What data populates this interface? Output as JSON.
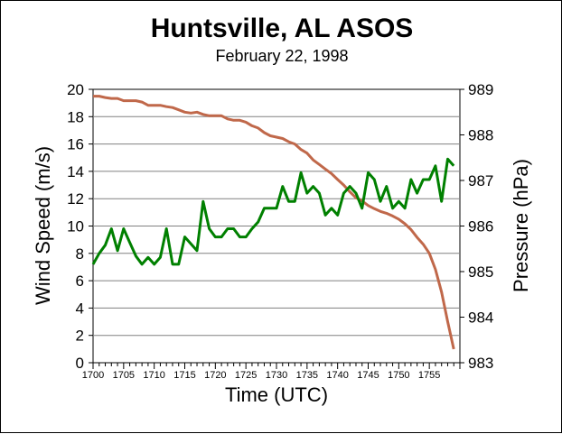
{
  "chart_data": {
    "type": "line",
    "title": "Huntsville, AL ASOS",
    "subtitle": "February 22, 1998",
    "xlabel": "Time (UTC)",
    "ylabel_left": "Wind Speed (m/s)",
    "ylabel_right": "Pressure (hPa)",
    "x_tick_labels": [
      "1700",
      "1705",
      "1710",
      "1715",
      "1720",
      "1725",
      "1730",
      "1735",
      "1740",
      "1745",
      "1750",
      "1755"
    ],
    "x_ticks": [
      0,
      5,
      10,
      15,
      20,
      25,
      30,
      35,
      40,
      45,
      50,
      55
    ],
    "xlim": [
      0,
      60
    ],
    "ylim_left": [
      0,
      20
    ],
    "ylim_right": [
      983,
      989
    ],
    "y_ticks_left": [
      "0",
      "2",
      "4",
      "6",
      "8",
      "10",
      "12",
      "14",
      "16",
      "18",
      "20"
    ],
    "y_ticks_right": [
      "983",
      "984",
      "985",
      "986",
      "987",
      "988",
      "989"
    ],
    "grid": "horizontal",
    "series": [
      {
        "axis": "left",
        "color": "#008000",
        "x": [
          0,
          1,
          2,
          3,
          4,
          5,
          6,
          7,
          8,
          9,
          10,
          11,
          12,
          13,
          14,
          15,
          16,
          17,
          18,
          19,
          20,
          21,
          22,
          23,
          24,
          25,
          26,
          27,
          28,
          29,
          30,
          31,
          32,
          33,
          34,
          35,
          36,
          37,
          38,
          39,
          40,
          41,
          42,
          43,
          44,
          45,
          46,
          47,
          48,
          49,
          50,
          51,
          52,
          53,
          54,
          55,
          56,
          57,
          58,
          59
        ],
        "values": [
          7.2,
          8.0,
          8.6,
          9.8,
          8.2,
          9.8,
          8.8,
          7.8,
          7.2,
          7.7,
          7.2,
          7.7,
          9.8,
          7.2,
          7.2,
          9.2,
          8.7,
          8.2,
          11.8,
          9.8,
          9.2,
          9.2,
          9.8,
          9.8,
          9.2,
          9.2,
          9.8,
          10.3,
          11.3,
          11.3,
          11.3,
          12.9,
          11.8,
          11.8,
          13.9,
          12.4,
          12.9,
          12.4,
          10.8,
          11.3,
          10.8,
          12.4,
          12.9,
          12.4,
          11.3,
          13.9,
          13.4,
          11.8,
          12.9,
          11.3,
          11.8,
          11.3,
          13.4,
          12.4,
          13.4,
          13.4,
          14.4,
          11.8,
          14.9,
          14.4
        ]
      },
      {
        "axis": "right",
        "color": "#c0684a",
        "x": [
          0,
          1,
          2,
          3,
          4,
          5,
          6,
          7,
          8,
          9,
          10,
          11,
          12,
          13,
          14,
          15,
          16,
          17,
          18,
          19,
          20,
          21,
          22,
          23,
          24,
          25,
          26,
          27,
          28,
          29,
          30,
          31,
          32,
          33,
          34,
          35,
          36,
          37,
          38,
          39,
          40,
          41,
          42,
          43,
          44,
          45,
          46,
          47,
          48,
          49,
          50,
          51,
          52,
          53,
          54,
          55,
          56,
          57,
          58,
          59
        ],
        "values": [
          988.85,
          988.85,
          988.82,
          988.8,
          988.8,
          988.75,
          988.75,
          988.75,
          988.72,
          988.65,
          988.65,
          988.65,
          988.62,
          988.6,
          988.55,
          988.5,
          988.48,
          988.5,
          988.45,
          988.42,
          988.42,
          988.42,
          988.35,
          988.32,
          988.32,
          988.28,
          988.2,
          988.15,
          988.05,
          987.98,
          987.95,
          987.92,
          987.85,
          987.8,
          987.68,
          987.6,
          987.45,
          987.35,
          987.25,
          987.15,
          987.02,
          986.9,
          986.75,
          986.62,
          986.55,
          986.45,
          986.38,
          986.32,
          986.28,
          986.22,
          986.15,
          986.05,
          985.92,
          985.75,
          985.6,
          985.4,
          985.05,
          984.55,
          983.9,
          983.3
        ]
      }
    ]
  }
}
